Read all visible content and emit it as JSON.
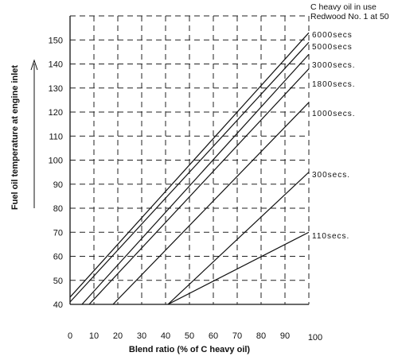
{
  "chart_data": {
    "type": "line",
    "xlabel": "Blend ratio (% of C heavy oil)",
    "ylabel": "Fuel oil temperature at engine inlet",
    "xlim": [
      0,
      100
    ],
    "ylim": [
      40,
      160
    ],
    "x_ticks": [
      "0",
      "10",
      "20",
      "30",
      "40",
      "50",
      "60",
      "70",
      "80",
      "90",
      "100"
    ],
    "y_ticks": [
      "40",
      "50",
      "60",
      "70",
      "80",
      "90",
      "100",
      "110",
      "120",
      "130",
      "140",
      "150"
    ],
    "grid": true,
    "grid_style": "dashed",
    "legend_note": [
      "C heavy oil in use",
      "Redwood No. 1 at 50"
    ],
    "series": [
      {
        "name": "6000secs",
        "label": "6000secs",
        "x": [
          0,
          100
        ],
        "y": [
          43,
          153
        ]
      },
      {
        "name": "5000secs",
        "label": "5000secs",
        "x": [
          0,
          100
        ],
        "y": [
          41,
          149
        ]
      },
      {
        "name": "3000secs",
        "label": "3000secs.",
        "x": [
          5,
          100
        ],
        "y": [
          40,
          144
        ]
      },
      {
        "name": "1800secs",
        "label": "1800secs.",
        "x": [
          8,
          100
        ],
        "y": [
          40,
          138
        ]
      },
      {
        "name": "1000secs",
        "label": "1000secs.",
        "x": [
          18,
          100
        ],
        "y": [
          40,
          124
        ]
      },
      {
        "name": "300secs",
        "label": "300secs.",
        "x": [
          41,
          100
        ],
        "y": [
          40,
          95
        ]
      },
      {
        "name": "110secs",
        "label": "110secs.",
        "x": [
          41,
          100
        ],
        "y": [
          40,
          70
        ]
      }
    ]
  }
}
